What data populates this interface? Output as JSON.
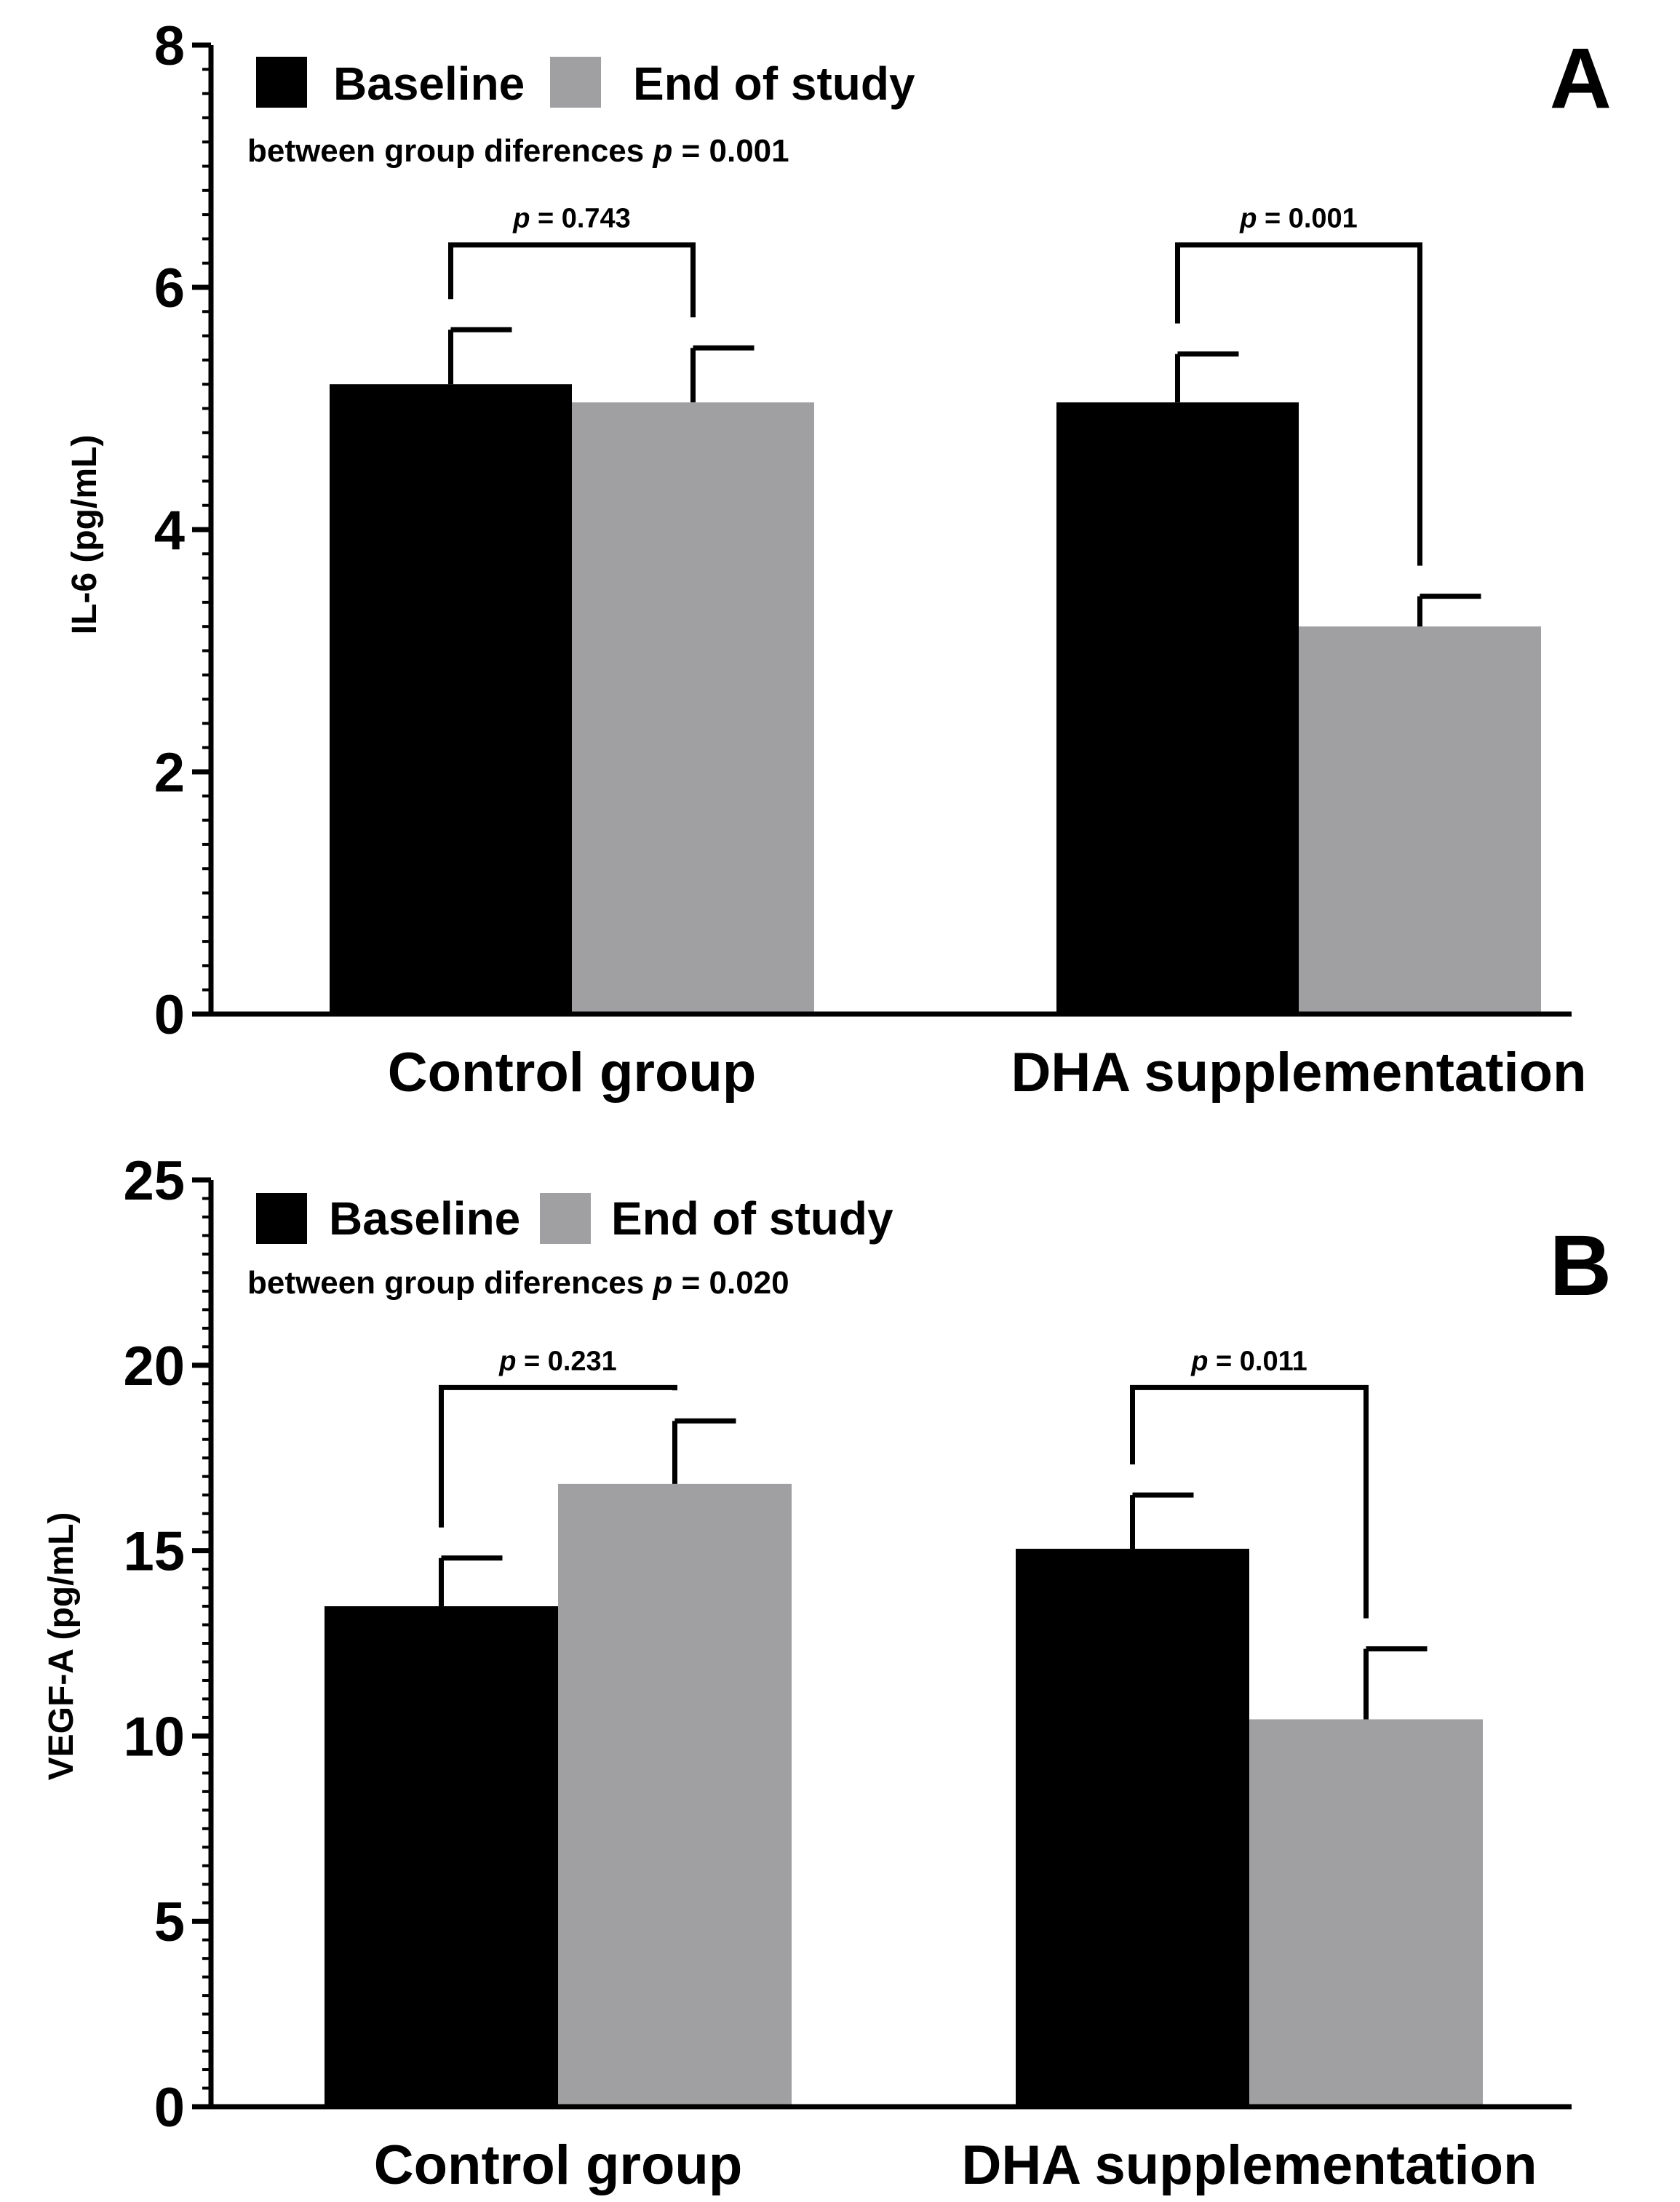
{
  "colors": {
    "baseline": "#000000",
    "end_of_study": "#a0a0a3",
    "axis": "#000000"
  },
  "legend": {
    "baseline": "Baseline",
    "end_of_study": "End of study"
  },
  "chart_data": [
    {
      "type": "bar",
      "panel_letter": "A",
      "ylabel": "IL-6 (pg/mL)",
      "ylim": [
        0,
        8
      ],
      "yticks": [
        "0",
        "2",
        "4",
        "6",
        "8"
      ],
      "ytick_values": [
        0,
        2,
        4,
        6,
        8
      ],
      "minor_tick_step": 0.2,
      "categories": [
        "Control group",
        "DHA supplementation"
      ],
      "series": [
        {
          "name": "Baseline",
          "values": [
            5.2,
            5.05
          ],
          "errors": [
            0.45,
            0.4
          ]
        },
        {
          "name": "End of study",
          "values": [
            5.05,
            3.2
          ],
          "errors": [
            0.45,
            0.25
          ]
        }
      ],
      "subtitle_prefix": "between group diferences ",
      "p_symbol": "p",
      "subtitle_value": " = 0.001",
      "comparisons": [
        {
          "label": " = 0.743",
          "bracket_top": 6.35
        },
        {
          "label": " = 0.001",
          "bracket_top": 6.35
        }
      ]
    },
    {
      "type": "bar",
      "panel_letter": "B",
      "ylabel": "VEGF-A (pg/mL)",
      "ylim": [
        0,
        25
      ],
      "yticks": [
        "0",
        "5",
        "10",
        "15",
        "20",
        "25"
      ],
      "ytick_values": [
        0,
        5,
        10,
        15,
        20,
        25
      ],
      "minor_tick_step": 0.5,
      "categories": [
        "Control group",
        "DHA supplementation"
      ],
      "series": [
        {
          "name": "Baseline",
          "values": [
            13.5,
            15.05
          ],
          "errors": [
            1.3,
            1.45
          ]
        },
        {
          "name": "End of study",
          "values": [
            16.8,
            10.45
          ],
          "errors": [
            1.7,
            1.9
          ]
        }
      ],
      "subtitle_prefix": "between group diferences ",
      "p_symbol": "p",
      "subtitle_value": " = 0.020",
      "comparisons": [
        {
          "label": " = 0.231",
          "bracket_top": 19.4
        },
        {
          "label": " = 0.011",
          "bracket_top": 19.4
        }
      ]
    }
  ]
}
